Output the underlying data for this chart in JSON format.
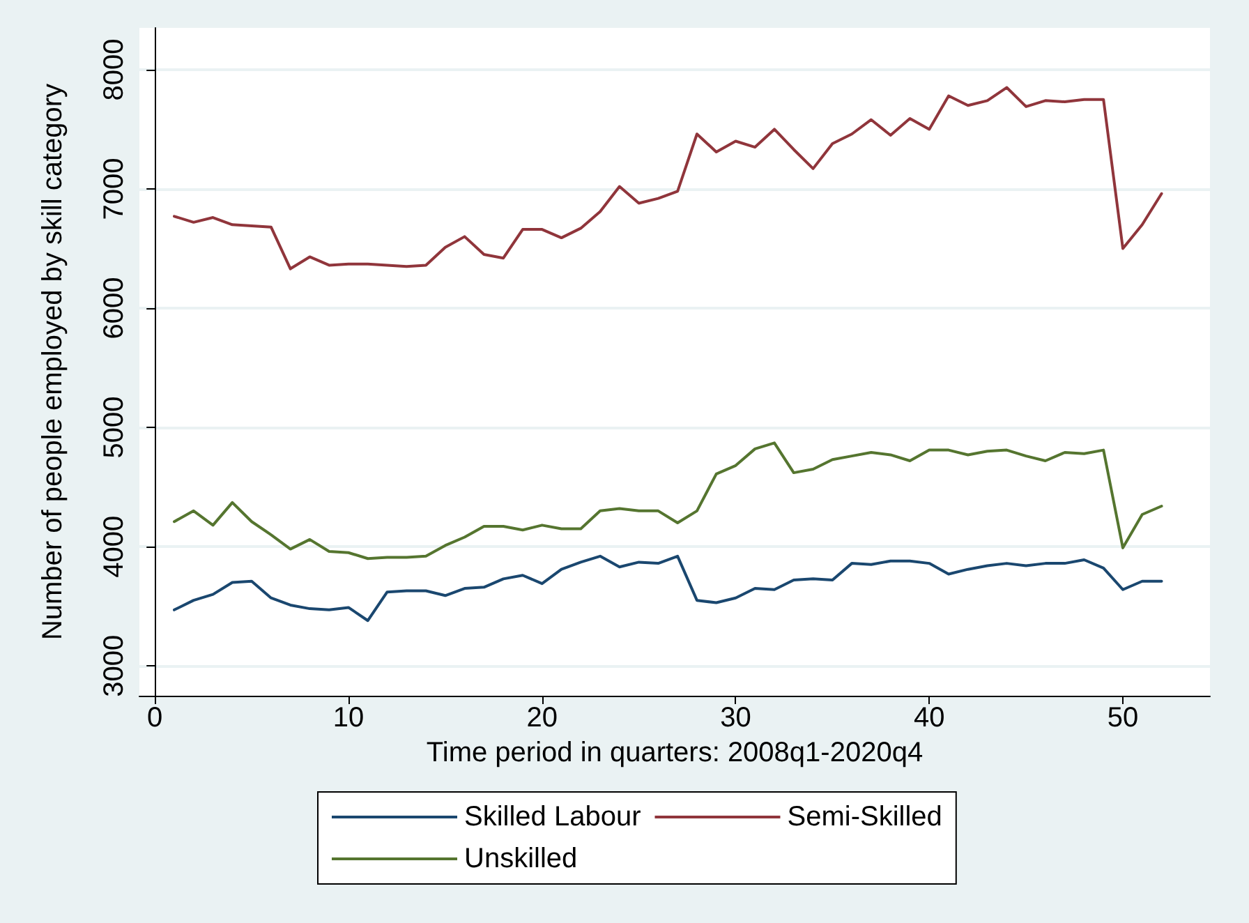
{
  "chart_data": {
    "type": "line",
    "xlabel": "Time period in quarters: 2008q1-2020q4",
    "ylabel": "Number of people employed by skill category",
    "x": [
      1,
      2,
      3,
      4,
      5,
      6,
      7,
      8,
      9,
      10,
      11,
      12,
      13,
      14,
      15,
      16,
      17,
      18,
      19,
      20,
      21,
      22,
      23,
      24,
      25,
      26,
      27,
      28,
      29,
      30,
      31,
      32,
      33,
      34,
      35,
      36,
      37,
      38,
      39,
      40,
      41,
      42,
      43,
      44,
      45,
      46,
      47,
      48,
      49,
      50,
      51,
      52
    ],
    "series": [
      {
        "name": "Skilled Labour",
        "color": "#1a476f",
        "values": [
          3470,
          3550,
          3600,
          3700,
          3710,
          3570,
          3510,
          3480,
          3470,
          3490,
          3380,
          3620,
          3630,
          3630,
          3590,
          3650,
          3660,
          3730,
          3760,
          3690,
          3810,
          3870,
          3920,
          3830,
          3870,
          3860,
          3920,
          3550,
          3530,
          3570,
          3650,
          3640,
          3720,
          3730,
          3720,
          3860,
          3850,
          3880,
          3880,
          3860,
          3770,
          3810,
          3840,
          3860,
          3840,
          3860,
          3860,
          3890,
          3820,
          3640,
          3710,
          3710
        ]
      },
      {
        "name": "Semi-Skilled",
        "color": "#90353b",
        "values": [
          6770,
          6720,
          6760,
          6700,
          6690,
          6680,
          6330,
          6430,
          6360,
          6370,
          6370,
          6360,
          6350,
          6360,
          6510,
          6600,
          6450,
          6420,
          6660,
          6660,
          6590,
          6670,
          6810,
          7020,
          6880,
          6920,
          6980,
          7460,
          7310,
          7400,
          7350,
          7500,
          7330,
          7170,
          7380,
          7460,
          7580,
          7450,
          7590,
          7500,
          7780,
          7700,
          7740,
          7850,
          7690,
          7740,
          7730,
          7750,
          7750,
          6500,
          6700,
          6960
        ]
      },
      {
        "name": "Unskilled",
        "color": "#55752f",
        "values": [
          4210,
          4300,
          4180,
          4370,
          4210,
          4100,
          3980,
          4060,
          3960,
          3950,
          3900,
          3910,
          3910,
          3920,
          4010,
          4080,
          4170,
          4170,
          4140,
          4180,
          4150,
          4150,
          4300,
          4320,
          4300,
          4300,
          4200,
          4300,
          4610,
          4680,
          4820,
          4870,
          4620,
          4650,
          4730,
          4760,
          4790,
          4770,
          4720,
          4810,
          4810,
          4770,
          4800,
          4810,
          4760,
          4720,
          4790,
          4780,
          4810,
          3990,
          4270,
          4340
        ]
      }
    ],
    "xlim": [
      -0.8,
      54.5
    ],
    "xticks": [
      0,
      10,
      20,
      30,
      40,
      50
    ],
    "ylim": [
      2750,
      8350
    ],
    "yticks": [
      3000,
      4000,
      5000,
      6000,
      7000,
      8000
    ],
    "grid": "y",
    "legend": "bottom",
    "marker": "none",
    "line_style": "solid"
  }
}
